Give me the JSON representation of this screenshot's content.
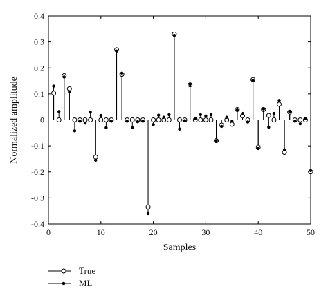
{
  "chart_data": {
    "type": "stem",
    "title": "",
    "xlabel": "Samples",
    "ylabel": "Normalized amplitude",
    "xlim": [
      0,
      50
    ],
    "ylim": [
      -0.4,
      0.4
    ],
    "xticks": [
      0,
      10,
      20,
      30,
      40,
      50
    ],
    "yticks": [
      -0.4,
      -0.3,
      -0.2,
      -0.1,
      0,
      0.1,
      0.2,
      0.3,
      0.4
    ],
    "grid": false,
    "legend_position": "bottom-left",
    "series": [
      {
        "name": "True",
        "marker": "open-circle",
        "color": "#000000",
        "x": [
          1,
          2,
          3,
          4,
          5,
          6,
          7,
          8,
          9,
          10,
          11,
          12,
          13,
          14,
          15,
          16,
          17,
          18,
          19,
          20,
          21,
          22,
          23,
          24,
          25,
          26,
          27,
          28,
          29,
          30,
          31,
          32,
          33,
          34,
          35,
          36,
          37,
          38,
          39,
          40,
          41,
          42,
          43,
          44,
          45,
          46,
          47,
          48,
          49,
          50
        ],
        "values": [
          0.103,
          0,
          0.17,
          0.12,
          0,
          0,
          0,
          0,
          -0.143,
          0,
          0,
          0,
          0.27,
          0.175,
          0,
          0,
          0,
          0,
          -0.335,
          0,
          0,
          0,
          0,
          0.33,
          0,
          0,
          0.135,
          0,
          0,
          0,
          0,
          -0.08,
          -0.02,
          0,
          -0.017,
          0.04,
          0.015,
          0,
          0.155,
          -0.105,
          0.04,
          0.017,
          0,
          0.06,
          -0.125,
          0.03,
          0,
          0,
          0,
          -0.2
        ]
      },
      {
        "name": "ML",
        "marker": "asterisk",
        "color": "#000000",
        "x": [
          1,
          2,
          3,
          4,
          5,
          6,
          7,
          8,
          9,
          10,
          11,
          12,
          13,
          14,
          15,
          16,
          17,
          18,
          19,
          20,
          21,
          22,
          23,
          24,
          25,
          26,
          27,
          28,
          29,
          30,
          31,
          32,
          33,
          34,
          35,
          36,
          37,
          38,
          39,
          40,
          41,
          42,
          43,
          44,
          45,
          46,
          47,
          48,
          49,
          50
        ],
        "values": [
          0.13,
          0.032,
          0.165,
          0.108,
          -0.042,
          -0.005,
          -0.012,
          0.03,
          -0.155,
          0.017,
          -0.03,
          -0.005,
          0.265,
          0.18,
          -0.005,
          -0.03,
          -0.007,
          -0.005,
          -0.36,
          -0.018,
          0.018,
          0.01,
          0.02,
          0.325,
          -0.035,
          -0.003,
          0.137,
          0.005,
          0.02,
          0.015,
          0.02,
          -0.08,
          -0.025,
          0.01,
          -0.005,
          0.038,
          0.025,
          -0.008,
          0.152,
          -0.11,
          0.042,
          -0.028,
          0.025,
          0.075,
          -0.115,
          0.032,
          -0.005,
          -0.015,
          0.005,
          -0.195
        ]
      }
    ]
  }
}
